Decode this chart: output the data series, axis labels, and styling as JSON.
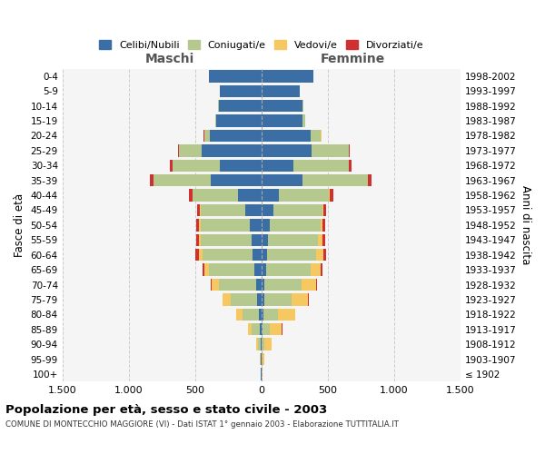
{
  "age_groups": [
    "100+",
    "95-99",
    "90-94",
    "85-89",
    "80-84",
    "75-79",
    "70-74",
    "65-69",
    "60-64",
    "55-59",
    "50-54",
    "45-49",
    "40-44",
    "35-39",
    "30-34",
    "25-29",
    "20-24",
    "15-19",
    "10-14",
    "5-9",
    "0-4"
  ],
  "birth_years": [
    "≤ 1902",
    "1903-1907",
    "1908-1912",
    "1913-1917",
    "1918-1922",
    "1923-1927",
    "1928-1932",
    "1933-1937",
    "1938-1942",
    "1943-1947",
    "1948-1952",
    "1953-1957",
    "1958-1962",
    "1963-1967",
    "1968-1972",
    "1973-1977",
    "1978-1982",
    "1983-1987",
    "1988-1992",
    "1993-1997",
    "1998-2002"
  ],
  "males": {
    "celibi": [
      2,
      2,
      5,
      10,
      20,
      30,
      40,
      55,
      65,
      75,
      90,
      120,
      175,
      380,
      310,
      450,
      390,
      340,
      320,
      310,
      395
    ],
    "coniugati": [
      3,
      5,
      20,
      60,
      120,
      200,
      280,
      340,
      380,
      380,
      370,
      340,
      340,
      430,
      360,
      170,
      40,
      10,
      5,
      2,
      2
    ],
    "vedovi": [
      0,
      2,
      15,
      30,
      50,
      60,
      55,
      35,
      25,
      15,
      8,
      5,
      3,
      2,
      2,
      2,
      2,
      0,
      0,
      0,
      0
    ],
    "divorziati": [
      0,
      0,
      0,
      2,
      2,
      5,
      8,
      12,
      25,
      22,
      20,
      18,
      25,
      30,
      15,
      5,
      2,
      0,
      0,
      0,
      0
    ]
  },
  "females": {
    "nubili": [
      2,
      2,
      5,
      10,
      15,
      20,
      25,
      35,
      45,
      50,
      65,
      90,
      130,
      310,
      240,
      380,
      370,
      310,
      310,
      290,
      390
    ],
    "coniugate": [
      2,
      5,
      20,
      55,
      110,
      210,
      280,
      340,
      370,
      380,
      380,
      370,
      380,
      490,
      420,
      280,
      80,
      20,
      5,
      2,
      2
    ],
    "vedove": [
      5,
      15,
      50,
      90,
      130,
      120,
      110,
      70,
      50,
      30,
      18,
      10,
      5,
      3,
      2,
      2,
      2,
      0,
      0,
      0,
      0
    ],
    "divorziate": [
      0,
      0,
      0,
      2,
      2,
      5,
      8,
      15,
      25,
      22,
      18,
      20,
      30,
      30,
      18,
      5,
      2,
      0,
      0,
      0,
      0
    ]
  },
  "colors": {
    "celibi": "#3A6EA5",
    "coniugati": "#B5C98E",
    "vedovi": "#F5C862",
    "divorziati": "#D03030"
  },
  "xlim": 1500,
  "title": "Popolazione per età, sesso e stato civile - 2003",
  "subtitle": "COMUNE DI MONTECCHIO MAGGIORE (VI) - Dati ISTAT 1° gennaio 2003 - Elaborazione TUTTITALIA.IT",
  "ylabel": "Fasce di età",
  "ylabel2": "Anni di nascita",
  "xtick_vals": [
    -1500,
    -1000,
    -500,
    0,
    500,
    1000,
    1500
  ],
  "xtick_labels": [
    "1.500",
    "1.000",
    "500",
    "0",
    "500",
    "1.000",
    "1.500"
  ],
  "background_color": "#ffffff",
  "plot_bg_color": "#f5f5f5",
  "grid_color": "#cccccc"
}
